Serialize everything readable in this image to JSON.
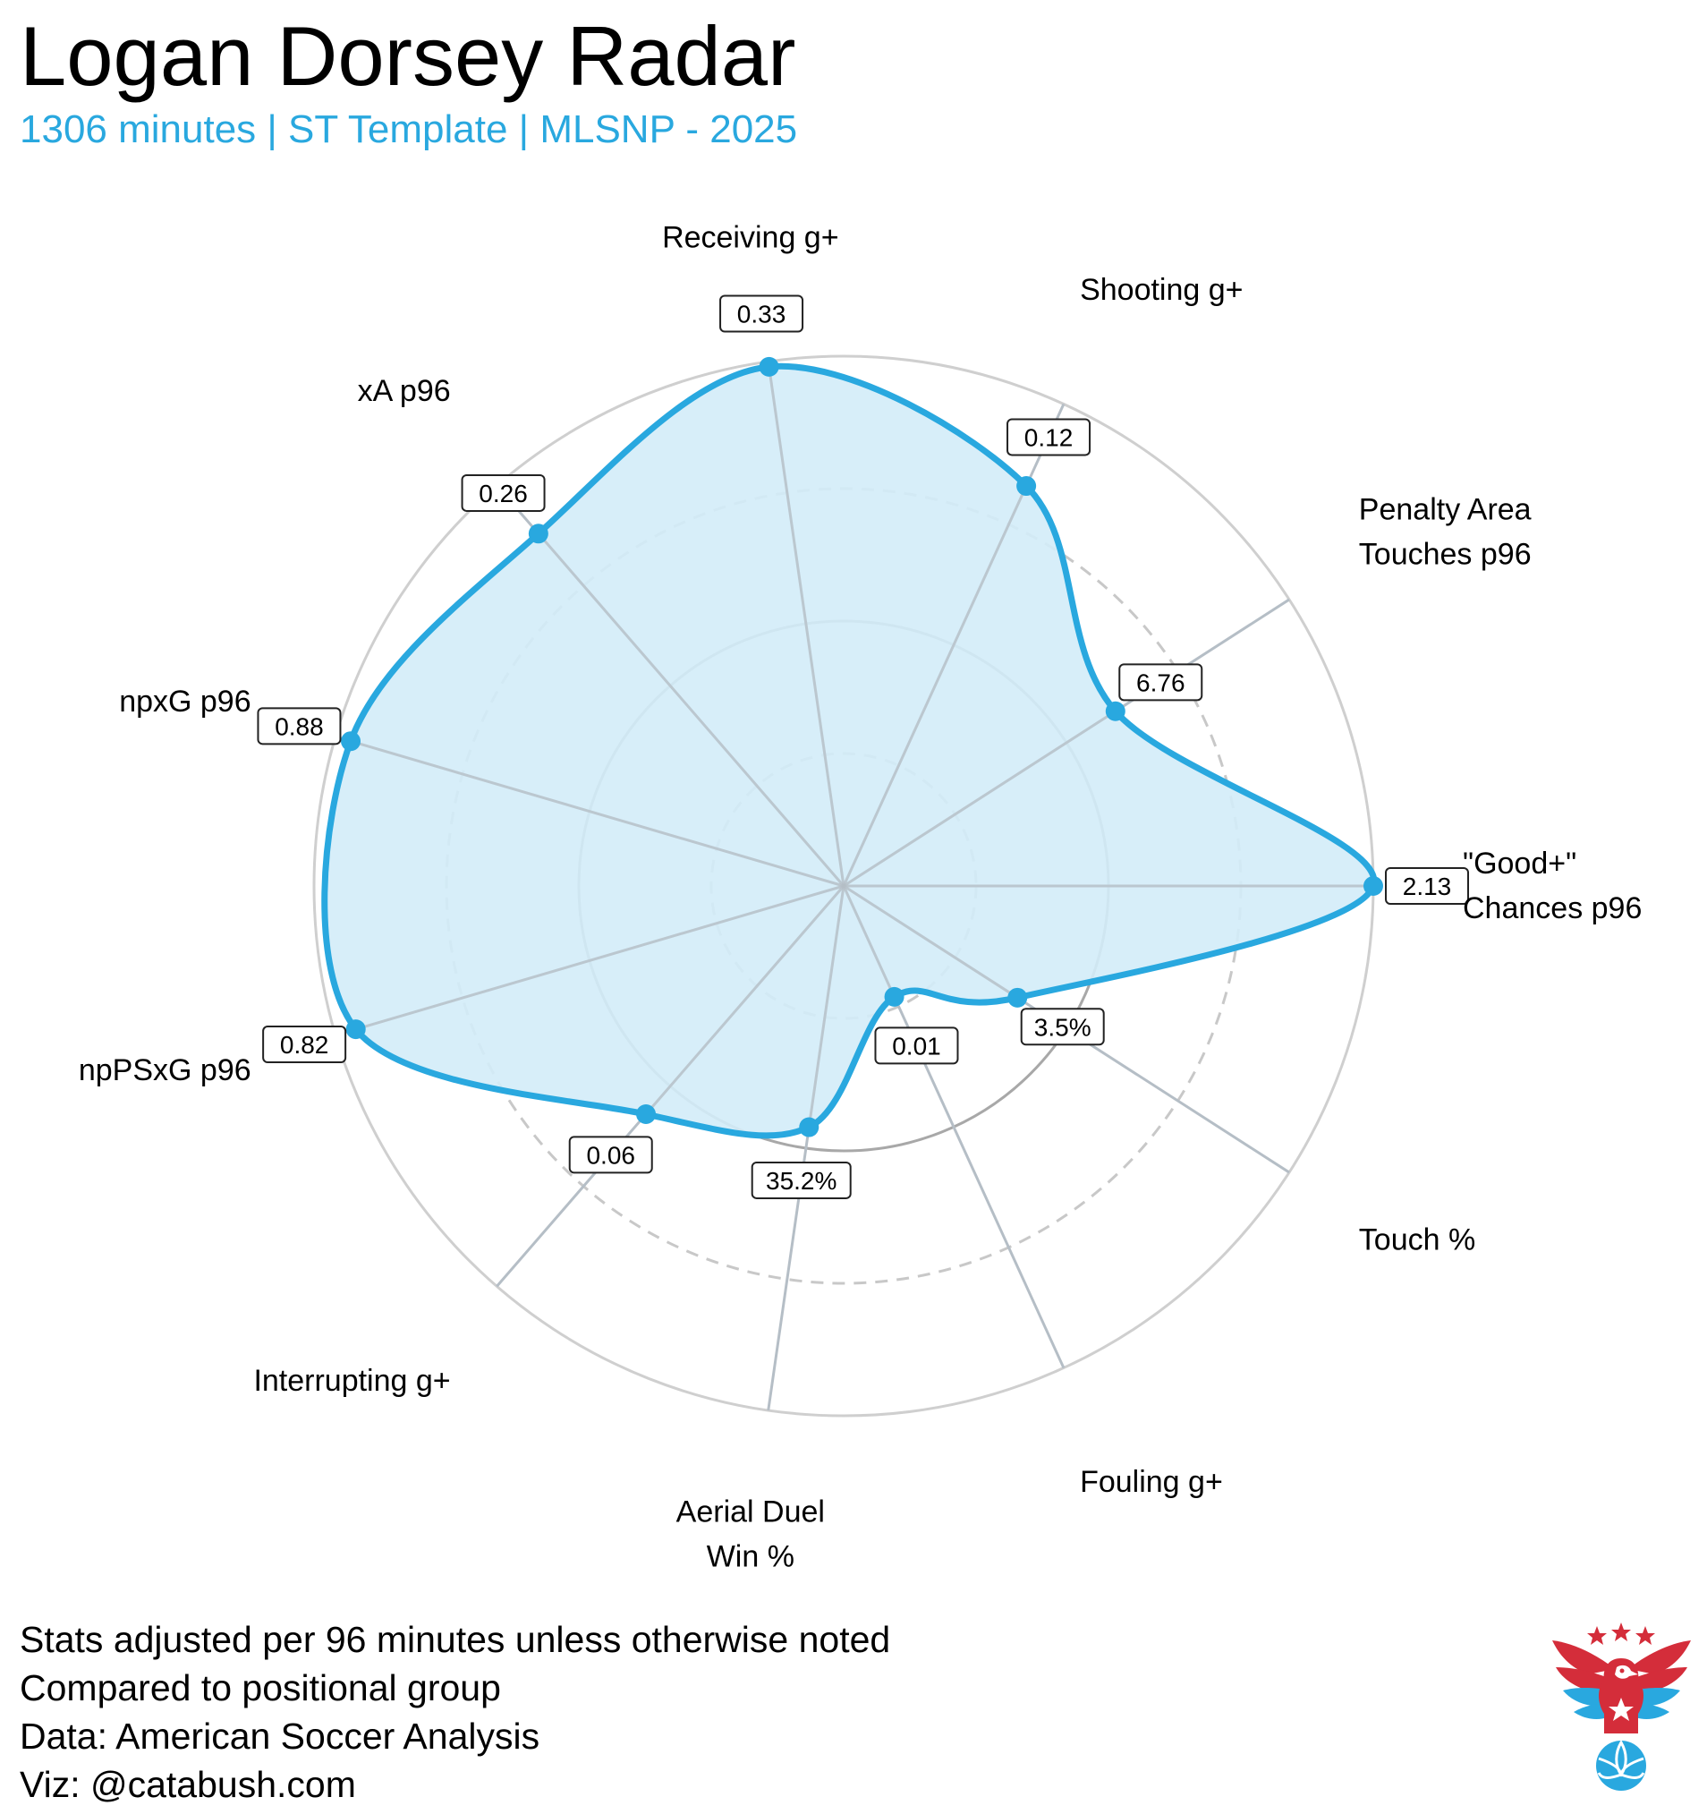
{
  "title": "Logan Dorsey Radar",
  "subtitle": "1306 minutes | ST Template | MLSNP - 2025",
  "colors": {
    "accent": "#29a8df",
    "fill": "#d3ecf8",
    "ring_outer": "#cfcfcf",
    "ring_mid_solid": "#a8a8a8",
    "ring_dashed": "#c8c8c8",
    "spoke": "#b5bec6",
    "logo_red": "#d42d3a",
    "logo_blue": "#29a8df"
  },
  "footer": {
    "line1": "Stats adjusted per 96 minutes unless otherwise noted",
    "line2": "Compared to positional group",
    "line3": "Data: American Soccer Analysis",
    "line4": "Viz: @catabush.com"
  },
  "logo": {
    "icon": "eagle-soccer-ball-logo"
  },
  "chart_data": {
    "type": "radar",
    "scale": "percentile",
    "rlim": [
      0,
      100
    ],
    "grid": {
      "rings": [
        25,
        50,
        75,
        100
      ],
      "dashed_rings": [
        25,
        75
      ]
    },
    "axes": [
      {
        "label_lines": [
          "\"Good+\"",
          "Chances p96"
        ],
        "value_label": "2.13",
        "percentile": 100
      },
      {
        "label_lines": [
          "Penalty Area",
          "Touches p96"
        ],
        "value_label": "6.76",
        "percentile": 61
      },
      {
        "label_lines": [
          "Shooting g+"
        ],
        "value_label": "0.12",
        "percentile": 83
      },
      {
        "label_lines": [
          "Receiving g+"
        ],
        "value_label": "0.33",
        "percentile": 99
      },
      {
        "label_lines": [
          "xA p96"
        ],
        "value_label": "0.26",
        "percentile": 88
      },
      {
        "label_lines": [
          "npxG p96"
        ],
        "value_label": "0.88",
        "percentile": 97
      },
      {
        "label_lines": [
          "npPSxG p96"
        ],
        "value_label": "0.82",
        "percentile": 96
      },
      {
        "label_lines": [
          "Interrupting g+"
        ],
        "value_label": "0.06",
        "percentile": 57
      },
      {
        "label_lines": [
          "Aerial Duel",
          "Win %"
        ],
        "value_label": "35.2%",
        "percentile": 46
      },
      {
        "label_lines": [
          "Fouling g+"
        ],
        "value_label": "0.01",
        "percentile": 23
      },
      {
        "label_lines": [
          "Touch %"
        ],
        "value_label": "3.5%",
        "percentile": 39
      }
    ]
  }
}
